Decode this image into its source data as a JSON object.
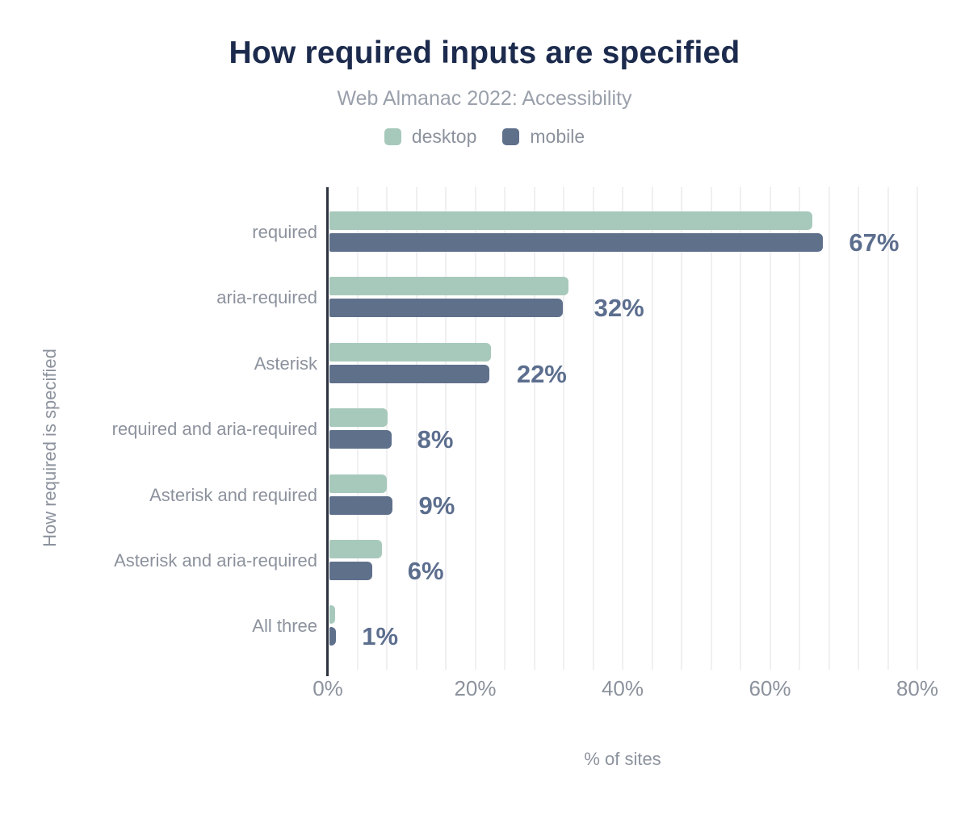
{
  "header": {
    "title": "How required inputs are specified",
    "subtitle": "Web Almanac 2022: Accessibility"
  },
  "legend": {
    "items": [
      {
        "label": "desktop",
        "color": "#a7c9bb"
      },
      {
        "label": "mobile",
        "color": "#5f708b"
      }
    ]
  },
  "chart_data": {
    "type": "bar",
    "orientation": "horizontal",
    "title": "How required inputs are specified",
    "subtitle": "Web Almanac 2022: Accessibility",
    "xlabel": "% of sites",
    "ylabel": "How required is specified",
    "xlim": [
      0,
      80
    ],
    "x_ticks": [
      {
        "label": "0%",
        "value": 0
      },
      {
        "label": "20%",
        "value": 20
      },
      {
        "label": "40%",
        "value": 40
      },
      {
        "label": "60%",
        "value": 60
      },
      {
        "label": "80%",
        "value": 80
      }
    ],
    "gridline_step_pct": 4,
    "grid": "vertical-light",
    "legend_position": "top",
    "categories": [
      "required",
      "aria-required",
      "Asterisk",
      "required and aria-required",
      "Asterisk and required",
      "Asterisk and aria-required",
      "All three"
    ],
    "series": [
      {
        "name": "desktop",
        "color": "#a7c9bb",
        "values": [
          65.5,
          32.4,
          21.9,
          7.9,
          7.8,
          7.1,
          0.8
        ]
      },
      {
        "name": "mobile",
        "color": "#5f708b",
        "values": [
          67.0,
          31.7,
          21.7,
          8.4,
          8.6,
          5.8,
          0.9
        ]
      }
    ],
    "value_labels": [
      "67%",
      "32%",
      "22%",
      "8%",
      "9%",
      "6%",
      "1%"
    ]
  },
  "colors": {
    "title": "#1c2b4d",
    "subtitle": "#9aa0ab",
    "axis_text": "#8c929d",
    "value_label": "#5c6e8e",
    "gridline": "#f0f0f2",
    "axis_line": "#2e3440",
    "background": "#ffffff"
  }
}
